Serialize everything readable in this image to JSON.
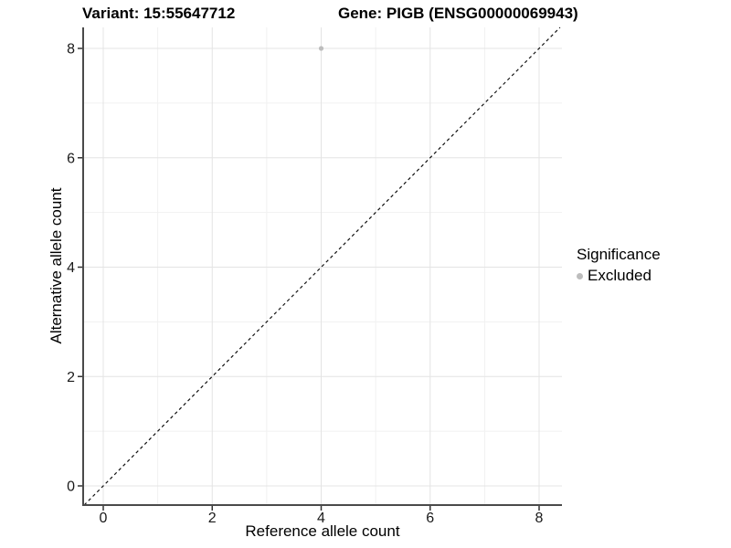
{
  "header": {
    "variant_title": "Variant: 15:55647712",
    "gene_title": "Gene: PIGB (ENSG00000069943)"
  },
  "chart_data": {
    "type": "scatter",
    "xlabel": "Reference allele count",
    "ylabel": "Alternative allele count",
    "xlim": [
      -0.4,
      8.4
    ],
    "ylim": [
      -0.4,
      8.4
    ],
    "x_ticks": [
      0,
      2,
      4,
      6,
      8
    ],
    "y_ticks": [
      0,
      2,
      4,
      6,
      8
    ],
    "x_minor_ticks": [
      1,
      3,
      5,
      7
    ],
    "y_minor_ticks": [
      1,
      3,
      5,
      7
    ],
    "grid": "major+minor",
    "points": [
      {
        "x": 4,
        "y": 8,
        "significance": "Excluded"
      }
    ],
    "reference_line": {
      "type": "identity",
      "slope": 1,
      "intercept": 0,
      "style": "dashed",
      "color": "#111111"
    },
    "legend": {
      "position": "right",
      "title": "Significance",
      "entries": [
        {
          "label": "Excluded",
          "color": "#bdbdbd",
          "marker": "circle"
        }
      ]
    },
    "colors": {
      "point_excluded": "#bdbdbd",
      "grid_major": "#e4e4e4",
      "grid_minor": "#f1f1f1",
      "axis_line": "#4a4a4a",
      "tick_mark": "#333333",
      "tick_label": "#1a1a1a",
      "background": "#ffffff"
    }
  }
}
